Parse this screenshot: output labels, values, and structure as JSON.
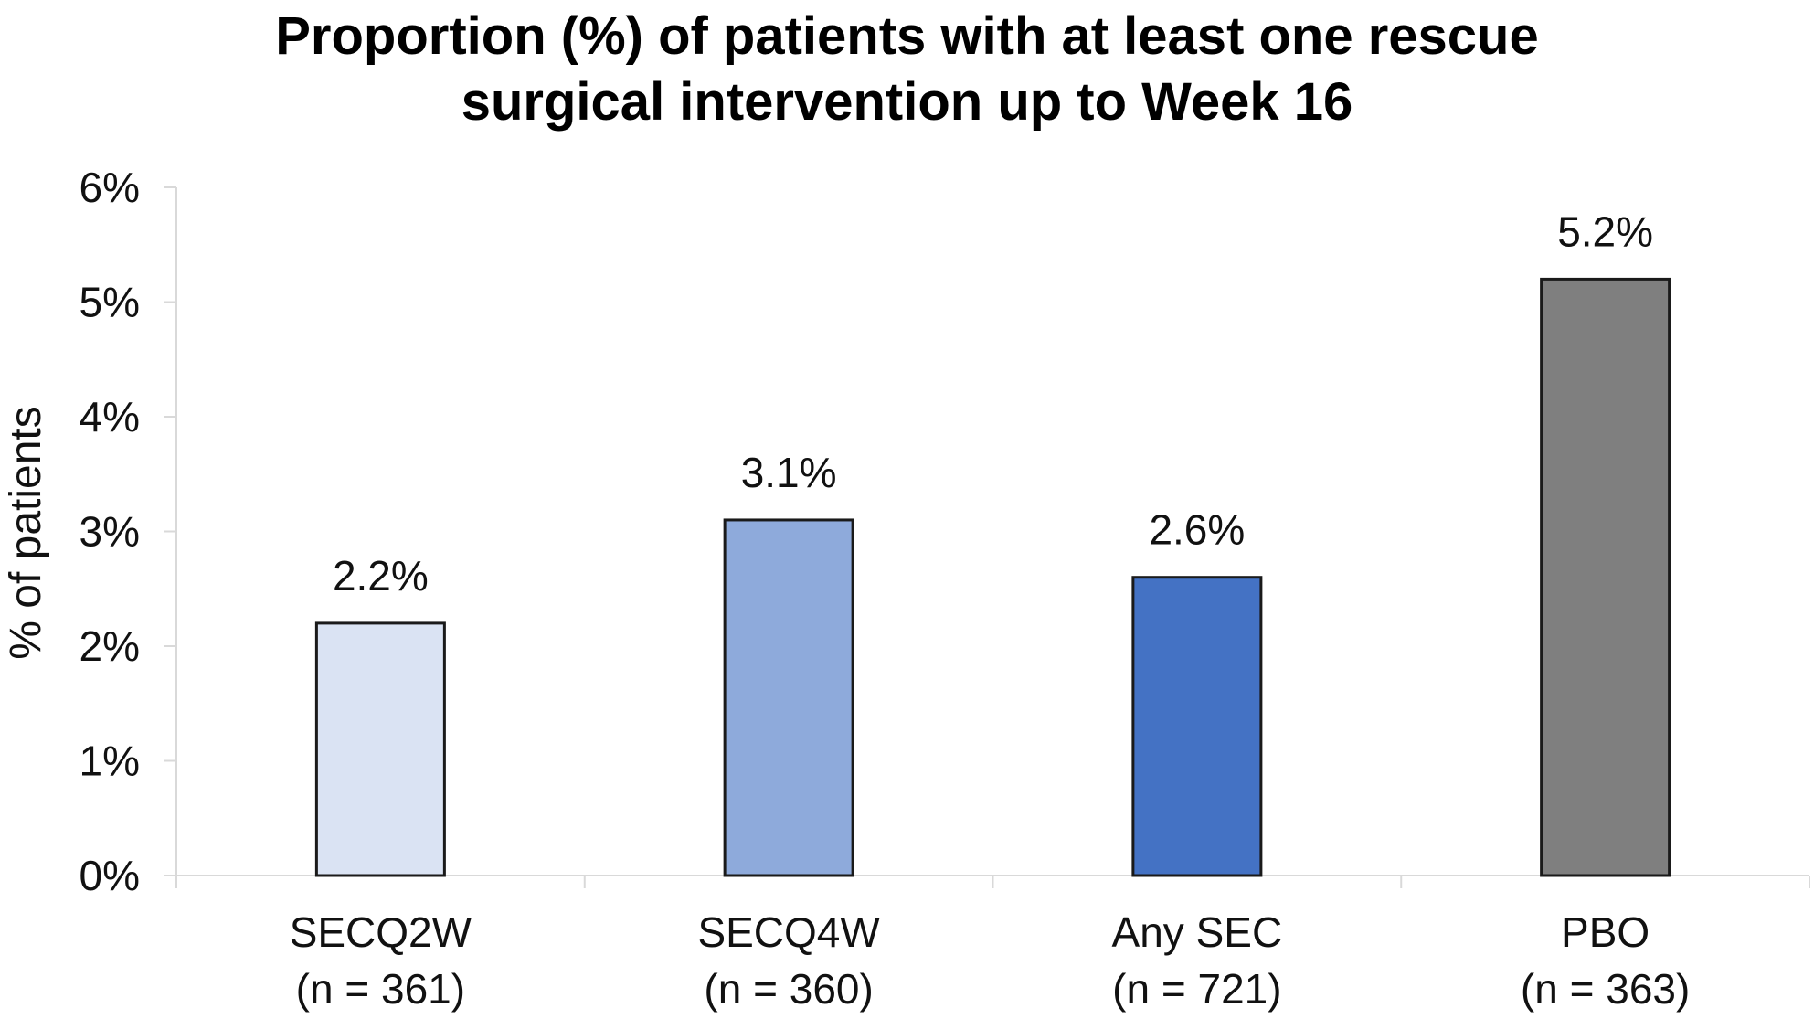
{
  "chart_data": {
    "type": "bar",
    "title_lines": [
      "Proportion (%) of patients with at least one rescue",
      "surgical intervention up to Week 16"
    ],
    "ylabel": "% of patients",
    "xlabel": "",
    "ylim": [
      0,
      6
    ],
    "y_ticks": [
      "0%",
      "1%",
      "2%",
      "3%",
      "4%",
      "5%",
      "6%"
    ],
    "grid": false,
    "categories": [
      {
        "name": "SECQ2W",
        "n": "(n = 361)"
      },
      {
        "name": "SECQ4W",
        "n": "(n = 360)"
      },
      {
        "name": "Any SEC",
        "n": "(n = 721)"
      },
      {
        "name": "PBO",
        "n": "(n = 363)"
      }
    ],
    "values": [
      2.2,
      3.1,
      2.6,
      5.2
    ],
    "value_labels": [
      "2.2%",
      "3.1%",
      "2.6%",
      "5.2%"
    ],
    "colors": [
      "#dae3f3",
      "#8eaadb",
      "#4472c4",
      "#7f7f7f"
    ]
  }
}
